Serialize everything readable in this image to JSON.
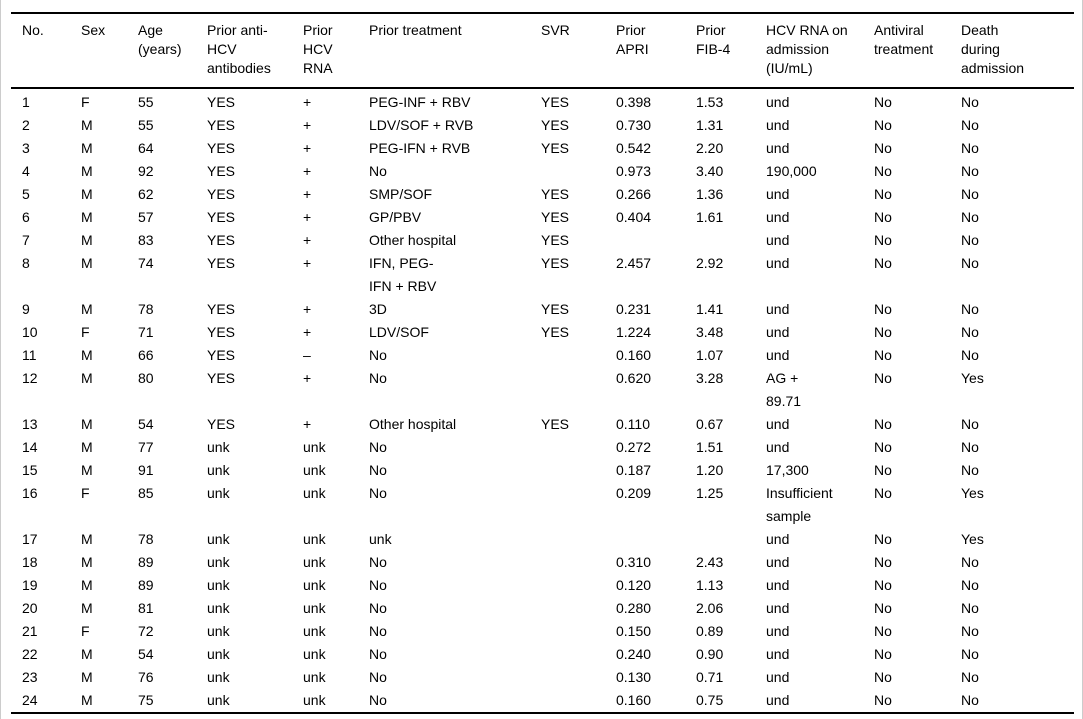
{
  "page": {
    "background": "#ffffff",
    "frame_border_color": "#cccccc",
    "text_color": "#000000",
    "rule_color": "#000000"
  },
  "table": {
    "columns": [
      {
        "id": "no",
        "label": "No."
      },
      {
        "id": "sex",
        "label": "Sex"
      },
      {
        "id": "age",
        "label": "Age\n(years)"
      },
      {
        "id": "prior-anti-hcv-antibodies",
        "label": "Prior anti-\nHCV\nantibodies"
      },
      {
        "id": "prior-hcv-rna",
        "label": "Prior\nHCV\nRNA"
      },
      {
        "id": "prior-treatment",
        "label": "Prior treatment"
      },
      {
        "id": "svr",
        "label": "SVR"
      },
      {
        "id": "prior-apri",
        "label": "Prior\nAPRI"
      },
      {
        "id": "prior-fib4",
        "label": "Prior\nFIB-4"
      },
      {
        "id": "hcv-rna-admission",
        "label": "HCV RNA on\nadmission\n(IU/mL)"
      },
      {
        "id": "antiviral-treatment",
        "label": "Antiviral\ntreatment"
      },
      {
        "id": "death-during-admission",
        "label": "Death\nduring\nadmission"
      }
    ],
    "rows": [
      [
        "1",
        "F",
        "55",
        "YES",
        "+",
        "PEG-INF + RBV",
        "YES",
        "0.398",
        "1.53",
        "und",
        "No",
        "No"
      ],
      [
        "2",
        "M",
        "55",
        "YES",
        "+",
        "LDV/SOF + RVB",
        "YES",
        "0.730",
        "1.31",
        "und",
        "No",
        "No"
      ],
      [
        "3",
        "M",
        "64",
        "YES",
        "+",
        "PEG-IFN + RVB",
        "YES",
        "0.542",
        "2.20",
        "und",
        "No",
        "No"
      ],
      [
        "4",
        "M",
        "92",
        "YES",
        "+",
        "No",
        "",
        "0.973",
        "3.40",
        "190,000",
        "No",
        "No"
      ],
      [
        "5",
        "M",
        "62",
        "YES",
        "+",
        "SMP/SOF",
        "YES",
        "0.266",
        "1.36",
        "und",
        "No",
        "No"
      ],
      [
        "6",
        "M",
        "57",
        "YES",
        "+",
        "GP/PBV",
        "YES",
        "0.404",
        "1.61",
        "und",
        "No",
        "No"
      ],
      [
        "7",
        "M",
        "83",
        "YES",
        "+",
        "Other hospital",
        "YES",
        "",
        "",
        "und",
        "No",
        "No"
      ],
      [
        "8",
        "M",
        "74",
        "YES",
        "+",
        "IFN, PEG-\nIFN + RBV",
        "YES",
        "2.457",
        "2.92",
        "und",
        "No",
        "No"
      ],
      [
        "9",
        "M",
        "78",
        "YES",
        "+",
        "3D",
        "YES",
        "0.231",
        "1.41",
        "und",
        "No",
        "No"
      ],
      [
        "10",
        "F",
        "71",
        "YES",
        "+",
        "LDV/SOF",
        "YES",
        "1.224",
        "3.48",
        "und",
        "No",
        "No"
      ],
      [
        "11",
        "M",
        "66",
        "YES",
        "–",
        "No",
        "",
        "0.160",
        "1.07",
        "und",
        "No",
        "No"
      ],
      [
        "12",
        "M",
        "80",
        "YES",
        "+",
        "No",
        "",
        "0.620",
        "3.28",
        "AG +\n89.71",
        "No",
        "Yes"
      ],
      [
        "13",
        "M",
        "54",
        "YES",
        "+",
        "Other hospital",
        "YES",
        "0.110",
        "0.67",
        "und",
        "No",
        "No"
      ],
      [
        "14",
        "M",
        "77",
        "unk",
        "unk",
        "No",
        "",
        "0.272",
        "1.51",
        "und",
        "No",
        "No"
      ],
      [
        "15",
        "M",
        "91",
        "unk",
        "unk",
        "No",
        "",
        "0.187",
        "1.20",
        "17,300",
        "No",
        "No"
      ],
      [
        "16",
        "F",
        "85",
        "unk",
        "unk",
        "No",
        "",
        "0.209",
        "1.25",
        "Insufficient\nsample",
        "No",
        "Yes"
      ],
      [
        "17",
        "M",
        "78",
        "unk",
        "unk",
        "unk",
        "",
        "",
        "",
        "und",
        "No",
        "Yes"
      ],
      [
        "18",
        "M",
        "89",
        "unk",
        "unk",
        "No",
        "",
        "0.310",
        "2.43",
        "und",
        "No",
        "No"
      ],
      [
        "19",
        "M",
        "89",
        "unk",
        "unk",
        "No",
        "",
        "0.120",
        "1.13",
        "und",
        "No",
        "No"
      ],
      [
        "20",
        "M",
        "81",
        "unk",
        "unk",
        "No",
        "",
        "0.280",
        "2.06",
        "und",
        "No",
        "No"
      ],
      [
        "21",
        "F",
        "72",
        "unk",
        "unk",
        "No",
        "",
        "0.150",
        "0.89",
        "und",
        "No",
        "No"
      ],
      [
        "22",
        "M",
        "54",
        "unk",
        "unk",
        "No",
        "",
        "0.240",
        "0.90",
        "und",
        "No",
        "No"
      ],
      [
        "23",
        "M",
        "76",
        "unk",
        "unk",
        "No",
        "",
        "0.130",
        "0.71",
        "und",
        "No",
        "No"
      ],
      [
        "24",
        "M",
        "75",
        "unk",
        "unk",
        "No",
        "",
        "0.160",
        "0.75",
        "und",
        "No",
        "No"
      ]
    ]
  }
}
